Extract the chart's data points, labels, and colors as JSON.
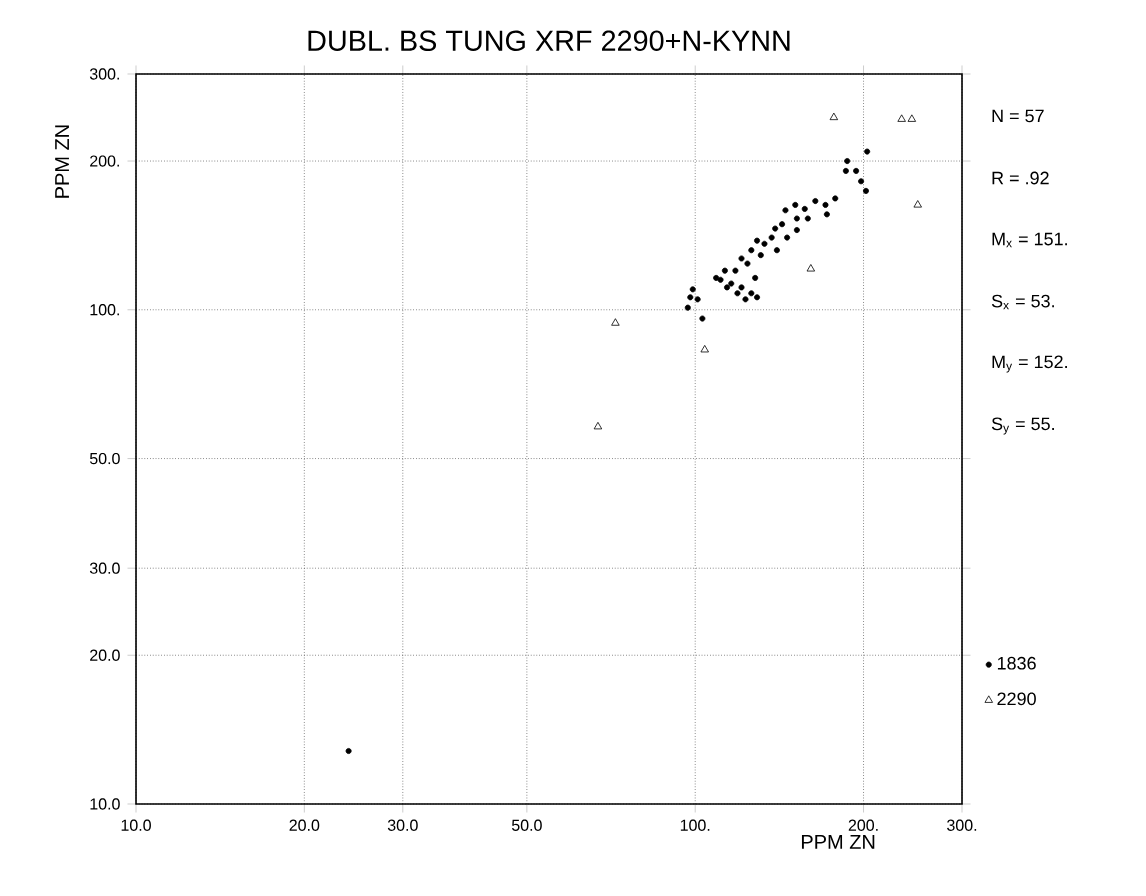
{
  "chart_data": {
    "type": "scatter",
    "title": "DUBL. BS TUNG XRF 2290+N-KYNN",
    "xlabel": "PPM ZN",
    "ylabel": "PPM ZN",
    "log": "xy",
    "grid": true,
    "legend": "right",
    "xlim": [
      10,
      300
    ],
    "ylim": [
      10,
      300
    ],
    "xticks": [
      {
        "value": 10,
        "label": "10.0"
      },
      {
        "value": 20,
        "label": "20.0"
      },
      {
        "value": 30,
        "label": "30.0"
      },
      {
        "value": 50,
        "label": "50.0"
      },
      {
        "value": 100,
        "label": "100."
      },
      {
        "value": 200,
        "label": "200."
      },
      {
        "value": 300,
        "label": "300."
      }
    ],
    "yticks": [
      {
        "value": 10,
        "label": "10.0"
      },
      {
        "value": 20,
        "label": "20.0"
      },
      {
        "value": 30,
        "label": "30.0"
      },
      {
        "value": 50,
        "label": "50.0"
      },
      {
        "value": 100,
        "label": "100."
      },
      {
        "value": 200,
        "label": "200."
      },
      {
        "value": 300,
        "label": "300."
      }
    ],
    "annotations": [
      "N = 57",
      "R = .92",
      "M$_{x}$ = 151.",
      "S$_{x}$ = 53.",
      "M$_{y}$ = 152.",
      "S$_{y}$ = 55."
    ],
    "series": [
      {
        "name": "1836",
        "color": "#000000",
        "marker": "circle",
        "x": [
          187,
          194,
          198,
          202,
          186,
          178,
          171,
          164,
          157,
          151,
          152,
          145,
          143,
          139,
          137,
          133,
          129,
          131,
          126,
          121,
          124,
          118,
          113,
          111,
          116,
          121,
          126,
          128,
          119,
          123,
          129,
          98,
          101,
          97,
          103,
          99,
          152,
          159,
          172,
          146,
          140,
          114,
          109,
          203,
          24
        ],
        "values": [
          200,
          191,
          182,
          174,
          191,
          168,
          163,
          166,
          160,
          163,
          153,
          159,
          149,
          146,
          140,
          136,
          138,
          129,
          132,
          127,
          124,
          120,
          120,
          115,
          113,
          111,
          108,
          116,
          108,
          105,
          106,
          106,
          105,
          101,
          96,
          110,
          145,
          153,
          156,
          140,
          132,
          111,
          116,
          209,
          12.8
        ]
      },
      {
        "name": "2290",
        "color": "#000000",
        "marker": "triangle",
        "x": [
          177,
          234,
          244,
          250,
          161,
          104,
          72,
          67
        ],
        "values": [
          245,
          243,
          243,
          163,
          121,
          83,
          94,
          58
        ]
      }
    ]
  }
}
